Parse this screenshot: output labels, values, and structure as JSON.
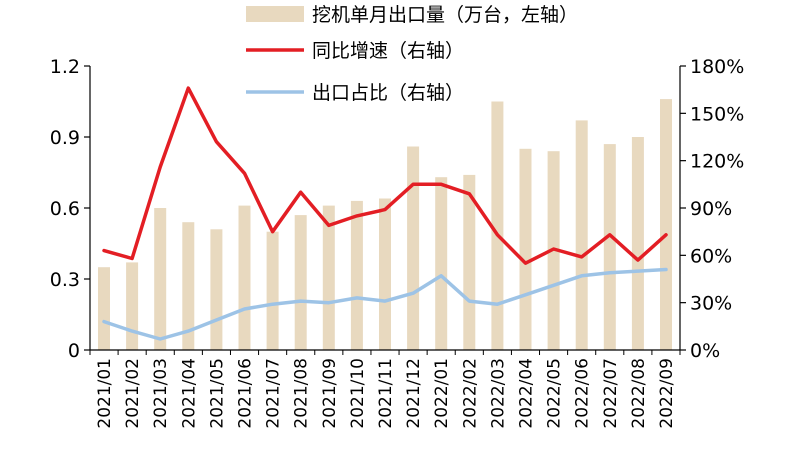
{
  "chart_data": {
    "type": "bar+line",
    "categories": [
      "2021/01",
      "2021/02",
      "2021/03",
      "2021/04",
      "2021/05",
      "2021/06",
      "2021/07",
      "2021/08",
      "2021/09",
      "2021/10",
      "2021/11",
      "2021/12",
      "2022/01",
      "2022/02",
      "2022/03",
      "2022/04",
      "2022/05",
      "2022/06",
      "2022/07",
      "2022/08",
      "2022/09"
    ],
    "series": [
      {
        "name": "挖机单月出口量（万台，左轴）",
        "type": "bar",
        "axis": "left",
        "color": "#e8d9bf",
        "values": [
          0.35,
          0.37,
          0.6,
          0.54,
          0.51,
          0.61,
          0.5,
          0.57,
          0.61,
          0.63,
          0.64,
          0.86,
          0.73,
          0.74,
          1.05,
          0.85,
          0.84,
          0.97,
          0.87,
          0.9,
          1.06
        ]
      },
      {
        "name": "同比增速（右轴）",
        "type": "line",
        "axis": "right",
        "color": "#e31e24",
        "values": [
          63,
          58,
          116,
          166,
          132,
          112,
          75,
          100,
          79,
          85,
          89,
          105,
          105,
          99,
          73,
          55,
          64,
          59,
          73,
          57,
          73
        ]
      },
      {
        "name": "出口占比（右轴）",
        "type": "line",
        "axis": "right",
        "color": "#9dc3e6",
        "values": [
          18,
          12,
          7,
          12,
          19,
          26,
          29,
          31,
          30,
          33,
          31,
          36,
          47,
          31,
          29,
          35,
          41,
          47,
          49,
          50,
          51
        ]
      }
    ],
    "y_left": {
      "ylim": [
        0,
        1.2
      ],
      "ticks": [
        "0",
        "0.3",
        "0.6",
        "0.9",
        "1.2"
      ]
    },
    "y_right": {
      "ylim": [
        0,
        180
      ],
      "ticks": [
        "0%",
        "30%",
        "60%",
        "90%",
        "120%",
        "150%",
        "180%"
      ]
    },
    "grid": false,
    "legend_position": "top-center"
  }
}
